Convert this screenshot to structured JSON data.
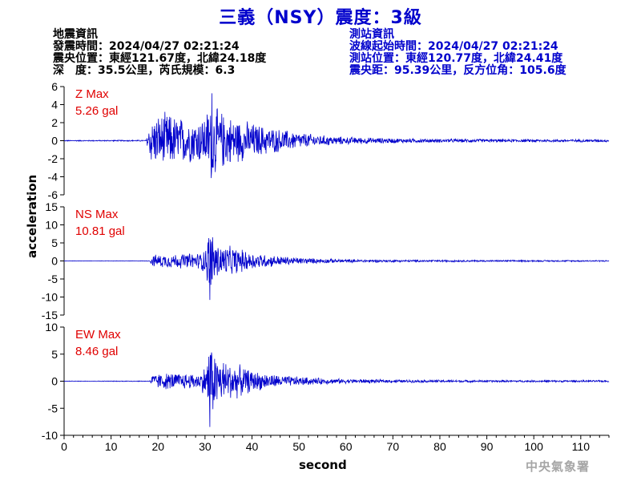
{
  "header": {
    "title": "三義（NSY）震度：3級"
  },
  "quake_info": {
    "heading": "地震資訊",
    "origin_time": "發震時間：2024/04/27 02:21:24",
    "epicenter": "震央位置：東經121.67度，北緯24.18度",
    "depth_magnitude": "深　度：35.5公里，芮氏規模：6.3"
  },
  "station_info": {
    "heading": "測站資訊",
    "wave_start": "波線起始時間：2024/04/27 02:21:24",
    "station_location": "測站位置：東經120.77度，北緯24.41度",
    "distance_azimuth": "震央距：95.39公里，反方位角：105.6度"
  },
  "axes": {
    "ylabel": "acceleration",
    "xlabel": "second"
  },
  "footer": {
    "agency": "中央氣象署"
  },
  "colors": {
    "trace": "#0000cc",
    "max_label": "#e00000",
    "title": "#0000cc",
    "agency": "#a6a6a6"
  },
  "chart_data": [
    {
      "type": "line",
      "channel": "Z",
      "max_label": "Z Max",
      "max_value_label": "5.26 gal",
      "peak": 5.26,
      "x_range": [
        0,
        116
      ],
      "ylim": [
        -6,
        6
      ],
      "yticks": [
        -6,
        -4,
        -2,
        0,
        2,
        4,
        6
      ],
      "envelope": [
        [
          0,
          0.06
        ],
        [
          17.5,
          0.08
        ],
        [
          18.2,
          2.6
        ],
        [
          20,
          3.1
        ],
        [
          22,
          3.4
        ],
        [
          24,
          2.9
        ],
        [
          26,
          2.7
        ],
        [
          28,
          2.6
        ],
        [
          30,
          3.0
        ],
        [
          31.5,
          5.26
        ],
        [
          32.5,
          3.9
        ],
        [
          35,
          3.0
        ],
        [
          38,
          2.5
        ],
        [
          41,
          2.0
        ],
        [
          45,
          1.5
        ],
        [
          50,
          1.0
        ],
        [
          55,
          0.65
        ],
        [
          60,
          0.45
        ],
        [
          70,
          0.3
        ],
        [
          80,
          0.22
        ],
        [
          95,
          0.18
        ],
        [
          116,
          0.16
        ]
      ]
    },
    {
      "type": "line",
      "channel": "NS",
      "max_label": "NS Max",
      "max_value_label": "10.81 gal",
      "peak": 10.81,
      "x_range": [
        0,
        116
      ],
      "ylim": [
        -15,
        15
      ],
      "yticks": [
        -15,
        -10,
        -5,
        0,
        5,
        10,
        15
      ],
      "envelope": [
        [
          0,
          0.05
        ],
        [
          18.2,
          0.08
        ],
        [
          18.8,
          1.8
        ],
        [
          22,
          2.1
        ],
        [
          26,
          2.3
        ],
        [
          29,
          2.5
        ],
        [
          30.2,
          4.5
        ],
        [
          31,
          10.81
        ],
        [
          32.2,
          5.8
        ],
        [
          34,
          4.6
        ],
        [
          36,
          4.2
        ],
        [
          40,
          2.6
        ],
        [
          45,
          1.6
        ],
        [
          50,
          1.0
        ],
        [
          55,
          0.7
        ],
        [
          60,
          0.5
        ],
        [
          70,
          0.35
        ],
        [
          90,
          0.25
        ],
        [
          116,
          0.2
        ]
      ]
    },
    {
      "type": "line",
      "channel": "EW",
      "max_label": "EW Max",
      "max_value_label": "8.46 gal",
      "peak": 8.46,
      "x_range": [
        0,
        116
      ],
      "ylim": [
        -10,
        10
      ],
      "yticks": [
        -10,
        -5,
        0,
        5,
        10
      ],
      "envelope": [
        [
          0,
          0.05
        ],
        [
          18.2,
          0.08
        ],
        [
          18.8,
          1.4
        ],
        [
          22,
          1.7
        ],
        [
          26,
          1.6
        ],
        [
          29,
          1.6
        ],
        [
          30.3,
          3.5
        ],
        [
          31,
          8.46
        ],
        [
          32,
          5.8
        ],
        [
          34,
          4.2
        ],
        [
          37,
          3.3
        ],
        [
          40,
          2.1
        ],
        [
          45,
          1.3
        ],
        [
          50,
          0.9
        ],
        [
          55,
          0.6
        ],
        [
          60,
          0.45
        ],
        [
          70,
          0.3
        ],
        [
          90,
          0.22
        ],
        [
          116,
          0.18
        ]
      ]
    }
  ],
  "x_axis": {
    "range": [
      0,
      116
    ],
    "ticks": [
      0,
      10,
      20,
      30,
      40,
      50,
      60,
      70,
      80,
      90,
      100,
      110
    ]
  }
}
